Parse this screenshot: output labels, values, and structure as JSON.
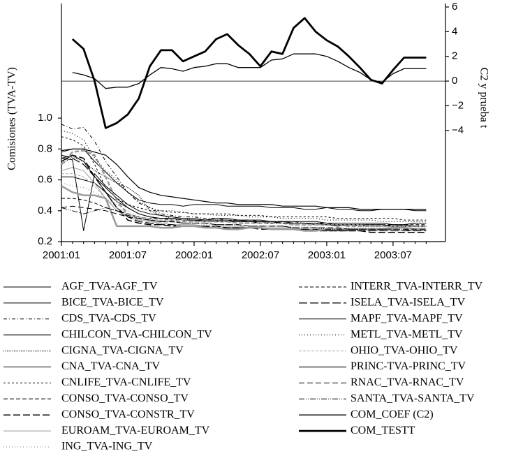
{
  "chart_data": {
    "type": "line",
    "y_label": "Comisiones (TVA-TV)",
    "y2_label": "C2 y prueba t",
    "categories": [
      "2001:01",
      null,
      null,
      null,
      null,
      null,
      "2001:07",
      null,
      null,
      null,
      null,
      null,
      "2002:01",
      null,
      null,
      null,
      null,
      null,
      "2002:07",
      null,
      null,
      null,
      null,
      null,
      "2003:01",
      null,
      null,
      null,
      null,
      null,
      "2003:07",
      null,
      null,
      null
    ],
    "ylim": [
      0.2,
      1.72
    ],
    "yticks": [
      0.2,
      0.4,
      0.6,
      0.8,
      {
        "value": 1.0,
        "label": "1.0"
      }
    ],
    "y2lim": [
      -13,
      6
    ],
    "y2ticks": [
      6,
      4,
      2,
      0,
      {
        "value": -2,
        "label": "−2"
      },
      {
        "value": -4,
        "label": "−4"
      }
    ],
    "series": [
      {
        "name": "AGF_TVA-AGF_TV",
        "color": "#000",
        "width": 1,
        "dash": "",
        "values": [
          0.78,
          0.8,
          0.8,
          0.72,
          0.65,
          0.58,
          0.52,
          0.47,
          0.45,
          0.44,
          0.44,
          0.43,
          0.44,
          0.44,
          0.44,
          0.43,
          0.43,
          0.43,
          0.43,
          0.42,
          0.42,
          0.42,
          0.41,
          0.41,
          0.42,
          0.41,
          0.41,
          0.4,
          0.4,
          0.41,
          0.41,
          0.41,
          0.4,
          0.4
        ]
      },
      {
        "name": "BICE_TVA-BICE_TV",
        "color": "#000",
        "width": 1,
        "dash": "",
        "values": [
          0.62,
          0.62,
          0.6,
          0.58,
          0.52,
          0.46,
          0.42,
          0.38,
          0.36,
          0.35,
          0.35,
          0.34,
          0.34,
          0.33,
          0.33,
          0.33,
          0.34,
          0.33,
          0.33,
          0.32,
          0.33,
          0.32,
          0.32,
          0.31,
          0.31,
          0.3,
          0.31,
          0.31,
          0.3,
          0.3,
          0.3,
          0.31,
          0.3,
          0.3
        ]
      },
      {
        "name": "CDS_TVA-CDS_TV",
        "color": "#000",
        "width": 1,
        "dash": "5 3 1 3",
        "values": [
          0.96,
          0.93,
          0.94,
          0.85,
          0.72,
          0.62,
          0.52,
          0.45,
          0.42,
          0.38,
          0.37,
          0.36,
          0.36,
          0.35,
          0.35,
          0.34,
          0.34,
          0.34,
          0.33,
          0.33,
          0.33,
          0.33,
          0.32,
          0.32,
          0.32,
          0.31,
          0.31,
          0.31,
          0.3,
          0.3,
          0.31,
          0.31,
          0.32,
          0.32
        ]
      },
      {
        "name": "CHILCON_TVA-CHILCON_TV",
        "color": "#000",
        "width": 1.2,
        "dash": "",
        "values": [
          0.79,
          0.8,
          0.8,
          0.78,
          0.76,
          0.7,
          0.62,
          0.55,
          0.52,
          0.5,
          0.49,
          0.48,
          0.47,
          0.46,
          0.45,
          0.45,
          0.44,
          0.44,
          0.44,
          0.44,
          0.43,
          0.43,
          0.43,
          0.43,
          0.42,
          0.42,
          0.42,
          0.41,
          0.41,
          0.41,
          0.41,
          0.41,
          0.41,
          0.41
        ]
      },
      {
        "name": "CIGNA_TVA-CIGNA_TV",
        "color": "#000",
        "width": 1.2,
        "dash": "1 1.5",
        "values": [
          0.7,
          0.75,
          0.72,
          0.66,
          0.62,
          0.58,
          0.55,
          0.5,
          0.4,
          0.37,
          0.35,
          0.35,
          0.34,
          0.34,
          0.34,
          0.33,
          0.33,
          0.33,
          0.33,
          0.32,
          0.32,
          0.32,
          0.32,
          0.31,
          0.31,
          0.31,
          0.31,
          0.3,
          0.3,
          0.3,
          0.3,
          0.3,
          0.3,
          0.3
        ]
      },
      {
        "name": "CNA_TVA-CNA_TV",
        "color": "#000",
        "width": 1,
        "dash": "",
        "values": [
          0.74,
          0.76,
          0.72,
          0.62,
          0.55,
          0.48,
          0.42,
          0.38,
          0.36,
          0.35,
          0.35,
          0.34,
          0.34,
          0.34,
          0.35,
          0.35,
          0.34,
          0.34,
          0.34,
          0.33,
          0.33,
          0.33,
          0.33,
          0.33,
          0.32,
          0.32,
          0.32,
          0.32,
          0.32,
          0.32,
          0.31,
          0.31,
          0.32,
          0.32
        ]
      },
      {
        "name": "CNLIFE_TVA-CNLIFE_TV",
        "color": "#000",
        "width": 1,
        "dash": "3 3",
        "values": [
          0.88,
          0.86,
          0.82,
          0.7,
          0.55,
          0.48,
          0.44,
          0.42,
          0.4,
          0.4,
          0.39,
          0.39,
          0.38,
          0.38,
          0.38,
          0.38,
          0.37,
          0.37,
          0.37,
          0.36,
          0.36,
          0.36,
          0.36,
          0.36,
          0.36,
          0.35,
          0.35,
          0.35,
          0.35,
          0.35,
          0.35,
          0.34,
          0.34,
          0.34
        ]
      },
      {
        "name": "CONSO_TVA-CONSO_TV",
        "color": "#999",
        "width": 2.5,
        "dash": "6 3",
        "values": [
          0.7,
          0.78,
          0.79,
          0.76,
          0.62,
          0.46,
          0.38,
          0.35,
          0.34,
          0.33,
          0.33,
          0.33,
          0.33,
          0.33,
          0.33,
          0.33,
          0.32,
          0.32,
          0.32,
          0.32,
          0.32,
          0.31,
          0.31,
          0.31,
          0.31,
          0.31,
          0.3,
          0.3,
          0.3,
          0.3,
          0.3,
          0.3,
          0.3,
          0.3
        ]
      },
      {
        "name": "CONSO_TVA-CONSTR_TV",
        "color": "#000",
        "width": 1.5,
        "dash": "10 4",
        "values": [
          0.72,
          0.76,
          0.74,
          0.62,
          0.52,
          0.42,
          0.34,
          0.32,
          0.31,
          0.31,
          0.3,
          0.3,
          0.3,
          0.3,
          0.29,
          0.29,
          0.29,
          0.29,
          0.28,
          0.28,
          0.28,
          0.28,
          0.28,
          0.27,
          0.27,
          0.27,
          0.27,
          0.27,
          0.26,
          0.26,
          0.26,
          0.26,
          0.26,
          0.26
        ]
      },
      {
        "name": "EUROAM_TVA-EUROAM_TV",
        "color": "#999",
        "width": 1,
        "dash": "",
        "values": [
          0.66,
          0.68,
          0.66,
          0.58,
          0.48,
          0.4,
          0.36,
          0.34,
          0.33,
          0.32,
          0.31,
          0.31,
          0.31,
          0.3,
          0.3,
          0.3,
          0.3,
          0.29,
          0.29,
          0.29,
          0.29,
          0.29,
          0.28,
          0.28,
          0.28,
          0.28,
          0.28,
          0.28,
          0.27,
          0.27,
          0.27,
          0.27,
          0.27,
          0.27
        ]
      },
      {
        "name": "ING_TVA-ING_TV",
        "color": "#999",
        "width": 1.2,
        "dash": "1 3",
        "values": [
          0.58,
          0.56,
          0.55,
          0.52,
          0.48,
          0.44,
          0.4,
          0.36,
          0.34,
          0.33,
          0.33,
          0.32,
          0.32,
          0.31,
          0.31,
          0.31,
          0.31,
          0.3,
          0.3,
          0.3,
          0.3,
          0.3,
          0.3,
          0.29,
          0.29,
          0.29,
          0.29,
          0.29,
          0.29,
          0.29,
          0.29,
          0.29,
          0.29,
          0.29
        ]
      },
      {
        "name": "INTERR_TVA-INTERR_TV",
        "color": "#000",
        "width": 1,
        "dash": "5 3",
        "values": [
          0.48,
          0.48,
          0.47,
          0.45,
          0.42,
          0.4,
          0.38,
          0.36,
          0.35,
          0.35,
          0.34,
          0.34,
          0.34,
          0.33,
          0.33,
          0.33,
          0.33,
          0.33,
          0.32,
          0.32,
          0.32,
          0.32,
          0.32,
          0.32,
          0.31,
          0.31,
          0.31,
          0.31,
          0.31,
          0.31,
          0.31,
          0.31,
          0.31,
          0.31
        ]
      },
      {
        "name": "ISELA_TVA-ISELA_TV",
        "color": "#000",
        "width": 1.2,
        "dash": "12 4",
        "values": [
          0.76,
          0.74,
          0.7,
          0.62,
          0.52,
          0.42,
          0.36,
          0.33,
          0.32,
          0.31,
          0.31,
          0.3,
          0.3,
          0.3,
          0.3,
          0.29,
          0.29,
          0.29,
          0.29,
          0.28,
          0.28,
          0.28,
          0.28,
          0.28,
          0.27,
          0.27,
          0.27,
          0.27,
          0.27,
          0.27,
          0.27,
          0.27,
          0.27,
          0.27
        ]
      },
      {
        "name": "MAPF_TVA-MAPF_TV",
        "color": "#000",
        "width": 1,
        "dash": "",
        "values": [
          0.74,
          0.73,
          0.27,
          0.64,
          0.56,
          0.5,
          0.44,
          0.4,
          0.38,
          0.37,
          0.36,
          0.35,
          0.35,
          0.34,
          0.34,
          0.34,
          0.33,
          0.33,
          0.33,
          0.33,
          0.32,
          0.32,
          0.32,
          0.32,
          0.31,
          0.31,
          0.31,
          0.31,
          0.31,
          0.31,
          0.3,
          0.3,
          0.3,
          0.3
        ]
      },
      {
        "name": "METL_TVA-METL_TV",
        "color": "#000",
        "width": 1.2,
        "dash": "1 3",
        "values": [
          0.92,
          0.9,
          0.86,
          0.74,
          0.66,
          0.6,
          0.52,
          0.46,
          0.42,
          0.4,
          0.4,
          0.39,
          0.38,
          0.38,
          0.37,
          0.37,
          0.37,
          0.36,
          0.36,
          0.36,
          0.35,
          0.35,
          0.35,
          0.35,
          0.34,
          0.34,
          0.34,
          0.34,
          0.34,
          0.33,
          0.33,
          0.33,
          0.33,
          0.33
        ]
      },
      {
        "name": "OHIO_TVA-OHIO_TV",
        "color": "#aaa",
        "width": 1,
        "dash": "4 2",
        "values": [
          0.64,
          0.64,
          0.62,
          0.56,
          0.48,
          0.42,
          0.38,
          0.36,
          0.35,
          0.34,
          0.34,
          0.34,
          0.33,
          0.33,
          0.33,
          0.33,
          0.32,
          0.32,
          0.32,
          0.32,
          0.32,
          0.31,
          0.31,
          0.31,
          0.31,
          0.31,
          0.31,
          0.31,
          0.3,
          0.3,
          0.3,
          0.3,
          0.3,
          0.3
        ]
      },
      {
        "name": "PRINC-TVA-PRINC_TV",
        "color": "#999",
        "width": 2.5,
        "dash": "",
        "values": [
          0.56,
          0.52,
          0.5,
          0.5,
          0.48,
          0.3,
          0.3,
          0.3,
          0.3,
          0.29,
          0.29,
          0.3,
          0.3,
          0.29,
          0.29,
          0.28,
          0.28,
          0.29,
          0.29,
          0.28,
          0.28,
          0.28,
          0.27,
          0.27,
          0.28,
          0.28,
          0.28,
          0.28,
          0.28,
          0.28,
          0.29,
          0.29,
          0.28,
          0.28
        ]
      },
      {
        "name": "RNAC_TVA-RNAC_TV",
        "color": "#000",
        "width": 1,
        "dash": "8 4",
        "values": [
          0.42,
          0.43,
          0.42,
          0.41,
          0.4,
          0.38,
          0.36,
          0.35,
          0.34,
          0.33,
          0.33,
          0.32,
          0.32,
          0.32,
          0.31,
          0.31,
          0.31,
          0.3,
          0.3,
          0.3,
          0.3,
          0.29,
          0.29,
          0.29,
          0.29,
          0.29,
          0.28,
          0.28,
          0.28,
          0.28,
          0.28,
          0.28,
          0.28,
          0.28
        ]
      },
      {
        "name": "SANTA_TVA-SANTA_TV",
        "color": "#000",
        "width": 1,
        "dash": "8 2 1 2 1 2",
        "values": [
          0.42,
          0.4,
          0.38,
          0.4,
          0.42,
          0.4,
          0.37,
          0.35,
          0.34,
          0.33,
          0.33,
          0.32,
          0.32,
          0.32,
          0.31,
          0.31,
          0.31,
          0.3,
          0.3,
          0.3,
          0.3,
          0.29,
          0.29,
          0.29,
          0.28,
          0.28,
          0.28,
          0.28,
          0.28,
          0.28,
          0.28,
          0.28,
          0.27,
          0.27
        ]
      },
      {
        "name": "COM_COEF (C2)",
        "color": "#000",
        "width": 1.3,
        "dash": "",
        "axis": "y2",
        "values": [
          null,
          0.7,
          0.5,
          0.2,
          -0.6,
          -0.5,
          -0.5,
          -0.2,
          0.5,
          1.1,
          1.0,
          0.8,
          1.1,
          1.2,
          1.4,
          1.4,
          1.1,
          1.1,
          1.1,
          1.7,
          1.8,
          2.2,
          2.2,
          2.2,
          2.0,
          1.6,
          1.1,
          0.7,
          0.1,
          -0.1,
          0.6,
          1.0,
          1.0,
          1.0
        ]
      },
      {
        "name": "COM_TESTT",
        "color": "#000",
        "width": 2.8,
        "dash": "",
        "axis": "y2",
        "values": [
          null,
          3.4,
          2.6,
          0,
          -3.8,
          -3.4,
          -2.7,
          -1.4,
          1.2,
          2.5,
          2.5,
          1.6,
          2.0,
          2.4,
          3.4,
          3.8,
          2.9,
          2.2,
          1.2,
          2.4,
          2.2,
          4.3,
          5.1,
          4.0,
          3.3,
          2.8,
          2.0,
          1.1,
          0.1,
          -0.2,
          0.9,
          1.9,
          1.9,
          1.9
        ]
      }
    ]
  }
}
